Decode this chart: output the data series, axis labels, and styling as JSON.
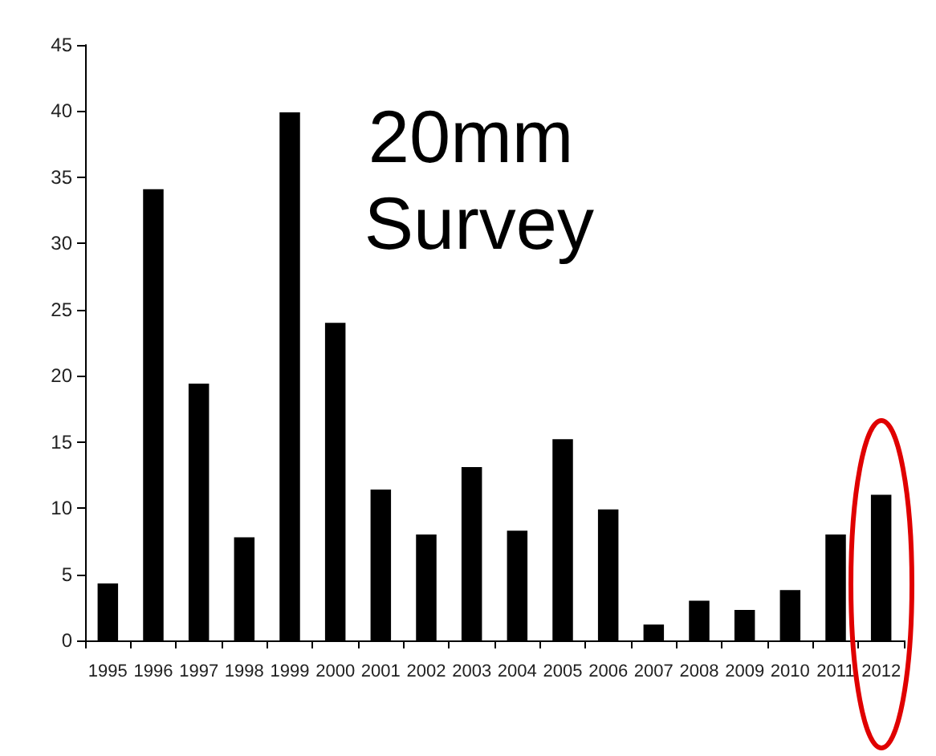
{
  "chart_data": {
    "type": "bar",
    "title": "20mm Survey",
    "categories": [
      "1995",
      "1996",
      "1997",
      "1998",
      "1999",
      "2000",
      "2001",
      "2002",
      "2003",
      "2004",
      "2005",
      "2006",
      "2007",
      "2008",
      "2009",
      "2010",
      "2011",
      "2012"
    ],
    "values": [
      4.3,
      34.1,
      19.4,
      7.8,
      39.9,
      24,
      11.4,
      8,
      13.1,
      8.3,
      15.2,
      9.9,
      1.2,
      3,
      2.3,
      3.8,
      8,
      11
    ],
    "color": "#000000",
    "ylim": [
      0,
      45
    ],
    "yticks": [
      0,
      5,
      10,
      15,
      20,
      25,
      30,
      35,
      40,
      45
    ],
    "grid": false
  }
}
